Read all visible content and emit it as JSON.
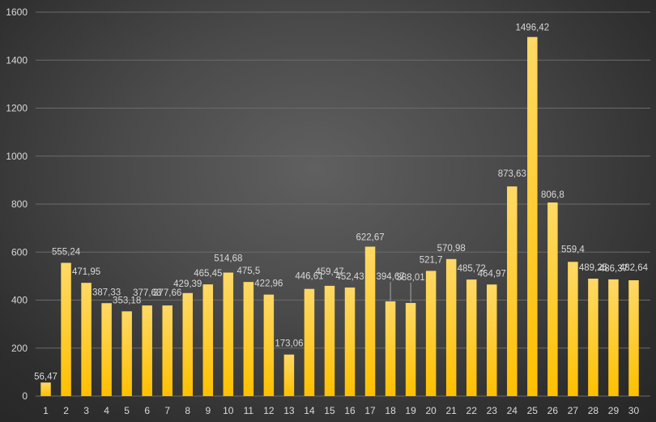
{
  "chart_data": {
    "type": "bar",
    "title": "",
    "xlabel": "",
    "ylabel": "",
    "ylim": [
      0,
      1600
    ],
    "yticks": [
      0,
      200,
      400,
      600,
      800,
      1000,
      1200,
      1400,
      1600
    ],
    "grid": true,
    "categories": [
      "1",
      "2",
      "3",
      "4",
      "5",
      "6",
      "7",
      "8",
      "9",
      "10",
      "11",
      "12",
      "13",
      "14",
      "15",
      "16",
      "17",
      "18",
      "19",
      "20",
      "21",
      "22",
      "23",
      "24",
      "25",
      "26",
      "27",
      "28",
      "29",
      "30"
    ],
    "values": [
      56.47,
      555.24,
      471.95,
      387.33,
      353.18,
      377.63,
      377.66,
      429.39,
      465.45,
      514.68,
      475.5,
      422.96,
      173.06,
      446.61,
      459.47,
      452.43,
      622.67,
      394.67,
      388.01,
      521.7,
      570.98,
      485.72,
      464.97,
      873.63,
      1496.42,
      806.8,
      559.4,
      489.25,
      486.37,
      482.64
    ],
    "data_labels": [
      "56,47",
      "555,24",
      "471,95",
      "387,33",
      "353,18",
      "377,63",
      "377,66",
      "429,39",
      "465,45",
      "514,68",
      "475,5",
      "422,96",
      "173,06",
      "446,61",
      "459,47",
      "452,43",
      "622,67",
      "394,67",
      "388,01",
      "521,7",
      "570,98",
      "485,72",
      "464,97",
      "873,63",
      "1496,42",
      "806,8",
      "559,4",
      "489,25",
      "486,37",
      "482,64"
    ],
    "colors": {
      "bar_top": "#ffd966",
      "bar_bottom": "#ffc000",
      "grid": "#6b6b6b",
      "text": "#d9d9d9"
    }
  }
}
